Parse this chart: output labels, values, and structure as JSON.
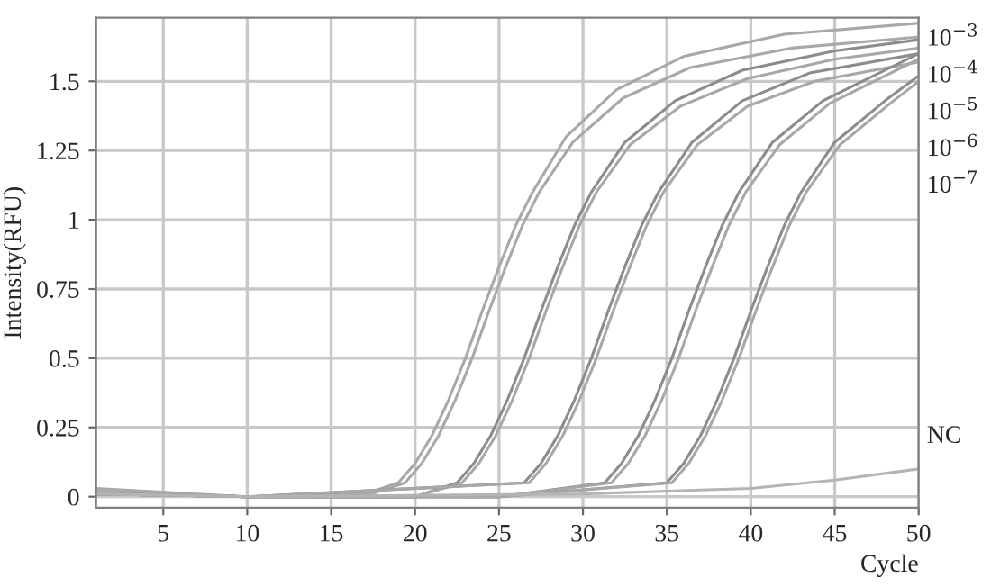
{
  "chart_data": {
    "type": "line",
    "xlabel": "Cycle",
    "ylabel": "Intensity(RFU)",
    "xlim": [
      1,
      50
    ],
    "ylim": [
      -0.04,
      1.73
    ],
    "xticks": [
      5,
      10,
      15,
      20,
      25,
      30,
      35,
      40,
      45,
      50
    ],
    "yticks": [
      0,
      0.25,
      0.5,
      0.75,
      1,
      1.25,
      1.5
    ],
    "grid": true,
    "legend": false,
    "marker": "none",
    "line_style": "solid",
    "series": [
      {
        "color": "#a8a8a8",
        "x": [
          1,
          10,
          17,
          19,
          20,
          21,
          22,
          23,
          24,
          25,
          26,
          27,
          29,
          32,
          36,
          42,
          50
        ],
        "values": [
          0.03,
          0,
          0.01,
          0.05,
          0.12,
          0.22,
          0.35,
          0.5,
          0.67,
          0.83,
          0.98,
          1.1,
          1.3,
          1.47,
          1.59,
          1.67,
          1.71
        ]
      },
      {
        "color": "#a8a8a8",
        "x": [
          1,
          10,
          17.4,
          19.4,
          20.4,
          21.4,
          22.4,
          23.4,
          24.4,
          25.4,
          26.4,
          27.4,
          29.4,
          32.4,
          36.4,
          42.4,
          50
        ],
        "values": [
          0.02,
          0,
          0.01,
          0.05,
          0.12,
          0.22,
          0.35,
          0.5,
          0.67,
          0.83,
          0.98,
          1.1,
          1.28,
          1.44,
          1.55,
          1.62,
          1.66
        ]
      },
      {
        "color": "#8c8c8c",
        "x": [
          1,
          10,
          20,
          22.5,
          23.5,
          24.5,
          25.5,
          26.5,
          27.5,
          28.5,
          29.5,
          30.5,
          32.5,
          35.5,
          39.5,
          45,
          50
        ],
        "values": [
          0.01,
          0,
          0,
          0.05,
          0.12,
          0.22,
          0.35,
          0.5,
          0.67,
          0.83,
          0.98,
          1.1,
          1.28,
          1.43,
          1.54,
          1.61,
          1.65
        ]
      },
      {
        "color": "#a8a8a8",
        "x": [
          1,
          10,
          20,
          22.8,
          23.8,
          24.8,
          25.8,
          26.8,
          27.8,
          28.8,
          29.8,
          30.8,
          32.8,
          35.8,
          39.8,
          45,
          50
        ],
        "values": [
          0.01,
          0,
          0,
          0.05,
          0.12,
          0.22,
          0.35,
          0.5,
          0.67,
          0.83,
          0.98,
          1.1,
          1.27,
          1.41,
          1.51,
          1.58,
          1.62
        ]
      },
      {
        "color": "#8c8c8c",
        "x": [
          1,
          10,
          26.5,
          27.5,
          28.5,
          29.5,
          30.5,
          31.5,
          32.5,
          33.5,
          34.5,
          36.5,
          39.5,
          43.5,
          50
        ],
        "values": [
          0.01,
          0,
          0.05,
          0.12,
          0.22,
          0.35,
          0.5,
          0.67,
          0.83,
          0.98,
          1.1,
          1.28,
          1.43,
          1.53,
          1.6
        ]
      },
      {
        "color": "#a8a8a8",
        "x": [
          1,
          10,
          26.8,
          27.8,
          28.8,
          29.8,
          30.8,
          31.8,
          32.8,
          33.8,
          34.8,
          36.8,
          39.8,
          43.8,
          50
        ],
        "values": [
          0.01,
          0,
          0.05,
          0.12,
          0.22,
          0.35,
          0.5,
          0.67,
          0.83,
          0.98,
          1.1,
          1.27,
          1.41,
          1.5,
          1.57
        ]
      },
      {
        "color": "#8c8c8c",
        "x": [
          1,
          10,
          25,
          31.3,
          32.3,
          33.3,
          34.3,
          35.3,
          36.3,
          37.3,
          38.3,
          39.3,
          41.3,
          44.3,
          50
        ],
        "values": [
          0.01,
          0,
          0,
          0.05,
          0.12,
          0.22,
          0.35,
          0.5,
          0.67,
          0.83,
          0.98,
          1.1,
          1.28,
          1.43,
          1.6
        ]
      },
      {
        "color": "#a8a8a8",
        "x": [
          1,
          10,
          25,
          31.7,
          32.7,
          33.7,
          34.7,
          35.7,
          36.7,
          37.7,
          38.7,
          39.7,
          41.7,
          44.7,
          50
        ],
        "values": [
          0.01,
          0,
          0,
          0.05,
          0.12,
          0.22,
          0.35,
          0.5,
          0.67,
          0.83,
          0.98,
          1.1,
          1.27,
          1.42,
          1.58
        ]
      },
      {
        "color": "#8c8c8c",
        "x": [
          1,
          10,
          25,
          35,
          36,
          37,
          38,
          39,
          40,
          41,
          42,
          43,
          45,
          48,
          50
        ],
        "values": [
          0.01,
          0,
          0,
          0.05,
          0.12,
          0.22,
          0.35,
          0.5,
          0.67,
          0.83,
          0.98,
          1.1,
          1.28,
          1.43,
          1.52
        ]
      },
      {
        "color": "#a8a8a8",
        "x": [
          1,
          10,
          25,
          35.3,
          36.3,
          37.3,
          38.3,
          39.3,
          40.3,
          41.3,
          42.3,
          43.3,
          45.3,
          48.3,
          50
        ],
        "values": [
          0.01,
          0,
          0,
          0.05,
          0.12,
          0.22,
          0.35,
          0.5,
          0.67,
          0.83,
          0.98,
          1.1,
          1.27,
          1.42,
          1.5
        ]
      },
      {
        "color": "#b4b4b4",
        "x": [
          1,
          10,
          30,
          40,
          45,
          50
        ],
        "values": [
          0.01,
          0,
          0.01,
          0.03,
          0.06,
          0.1
        ]
      }
    ],
    "annotations": [
      "10$^{−3}$",
      "10$^{−4}$",
      "10$^{−5}$",
      "10$^{−6}$",
      "10$^{−7}$",
      "NC"
    ]
  }
}
